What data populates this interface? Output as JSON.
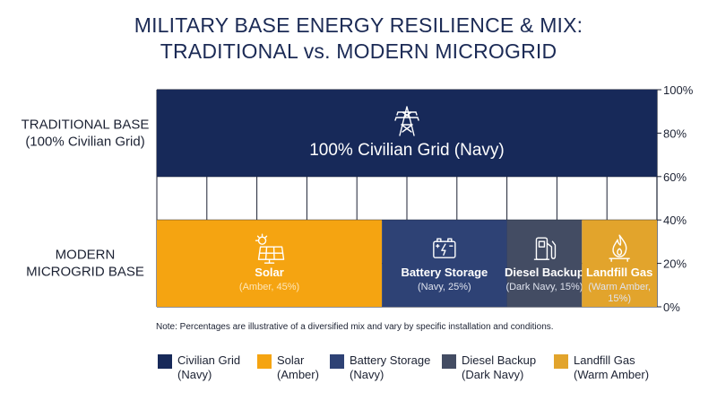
{
  "title": {
    "line1": "MILITARY BASE ENERGY RESILIENCE & MIX:",
    "line2": "TRADITIONAL vs. MODERN MICROGRID"
  },
  "note": "Note: Percentages are illustrative of a diversified mix and vary by specific installation and conditions.",
  "colors": {
    "civilian_grid": "#172959",
    "solar": "#f5a411",
    "battery_storage": "#2e4275",
    "diesel_backup": "#434c63",
    "landfill_gas": "#e2a42c",
    "sub_text_solar": "#fde6b8",
    "sub_text_dark": "#dfe3ee"
  },
  "chart_data": {
    "type": "bar",
    "orientation": "horizontal-stacked",
    "title": "MILITARY BASE ENERGY RESILIENCE & MIX: TRADITIONAL vs. MODERN MICROGRID",
    "y_axis": {
      "range": [
        0,
        100
      ],
      "ticks": [
        "0%",
        "20%",
        "40%",
        "60%",
        "80%",
        "100%"
      ],
      "position": "right"
    },
    "grid": true,
    "rows": [
      {
        "label_lines": [
          "TRADITIONAL BASE",
          "(100% Civilian Grid)"
        ],
        "y_range": [
          60,
          100
        ],
        "segments": [
          {
            "name": "100% Civilian Grid (Navy)",
            "value": 100,
            "color": "#172959",
            "icon": "transmission-tower-icon"
          }
        ]
      },
      {
        "label_lines": [
          "MODERN",
          "MICROGRID BASE"
        ],
        "y_range": [
          0,
          40
        ],
        "segments": [
          {
            "name": "Solar",
            "sub": [
              "(Amber, 45%)"
            ],
            "value": 45,
            "color": "#f5a411",
            "icon": "solar-panel-icon"
          },
          {
            "name": "Battery Storage",
            "sub": [
              "(Navy, 25%)"
            ],
            "value": 25,
            "color": "#2e4275",
            "icon": "battery-icon"
          },
          {
            "name": "Diesel Backup",
            "sub": [
              "(Dark Navy, 15%)"
            ],
            "value": 15,
            "color": "#434c63",
            "icon": "fuel-pump-icon"
          },
          {
            "name": "Landfill Gas",
            "sub": [
              "(Warm Amber,",
              "15%)"
            ],
            "value": 15,
            "color": "#e2a42c",
            "icon": "flame-icon"
          }
        ]
      }
    ],
    "legend": {
      "placement": "bottom",
      "items": [
        {
          "line1": "Civilian Grid",
          "line2": "(Navy)",
          "color": "#172959"
        },
        {
          "line1": "Solar",
          "line2": "(Amber)",
          "color": "#f5a411"
        },
        {
          "line1": "Battery Storage",
          "line2": "(Navy)",
          "color": "#2e4275"
        },
        {
          "line1": "Diesel Backup",
          "line2": "(Dark Navy)",
          "color": "#434c63"
        },
        {
          "line1": "Landfill Gas",
          "line2": "(Warm Amber)",
          "color": "#e2a42c"
        }
      ]
    }
  }
}
